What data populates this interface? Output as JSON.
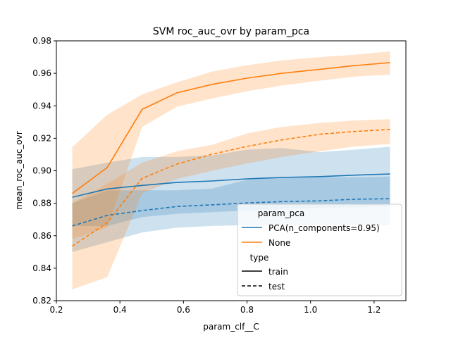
{
  "chart_data": {
    "type": "line",
    "title": "SVM roc_auc_ovr by param_pca",
    "xlabel": "param_clf__C",
    "ylabel": "mean_roc_auc_ovr",
    "xlim": [
      0.2,
      1.3
    ],
    "ylim": [
      0.82,
      0.98
    ],
    "xticks": [
      0.2,
      0.4,
      0.6,
      0.8,
      1.0,
      1.2
    ],
    "xtick_labels": [
      "0.2",
      "0.4",
      "0.6",
      "0.8",
      "1.0",
      "1.2"
    ],
    "yticks": [
      0.82,
      0.84,
      0.86,
      0.88,
      0.9,
      0.92,
      0.94,
      0.96,
      0.98
    ],
    "ytick_labels": [
      "0.82",
      "0.84",
      "0.86",
      "0.88",
      "0.90",
      "0.92",
      "0.94",
      "0.96",
      "0.98"
    ],
    "grid": false,
    "legend": {
      "placement": "lower right",
      "hue_title": "param_pca",
      "hue_entries": [
        "PCA(n_components=0.95)",
        "None"
      ],
      "style_title": "type",
      "style_entries": [
        "train",
        "test"
      ]
    },
    "colors": {
      "PCA(n_components=0.95)": "#1f77b4",
      "None": "#ff7f0e"
    },
    "x": [
      0.25,
      0.36,
      0.47,
      0.58,
      0.69,
      0.8,
      0.91,
      1.03,
      1.14,
      1.25
    ],
    "series": [
      {
        "hue": "PCA(n_components=0.95)",
        "type": "train",
        "values": [
          0.8837,
          0.8888,
          0.891,
          0.8928,
          0.8937,
          0.895,
          0.8959,
          0.8964,
          0.8973,
          0.898
        ],
        "lower": [
          0.866,
          0.866,
          0.8715,
          0.8735,
          0.8745,
          0.8755,
          0.8765,
          0.877,
          0.8775,
          0.878
        ],
        "upper": [
          0.901,
          0.905,
          0.9085,
          0.9085,
          0.9095,
          0.913,
          0.914,
          0.9115,
          0.913,
          0.9148
        ]
      },
      {
        "hue": "PCA(n_components=0.95)",
        "type": "test",
        "values": [
          0.866,
          0.8725,
          0.8755,
          0.878,
          0.879,
          0.8802,
          0.881,
          0.8815,
          0.8825,
          0.8828
        ],
        "lower": [
          0.85,
          0.856,
          0.862,
          0.865,
          0.866,
          0.8665,
          0.8665,
          0.8665,
          0.8665,
          0.8665
        ],
        "upper": [
          0.88,
          0.888,
          0.888,
          0.888,
          0.889,
          0.8945,
          0.896,
          0.896,
          0.896,
          0.8965
        ]
      },
      {
        "hue": "None",
        "type": "train",
        "values": [
          0.886,
          0.902,
          0.9378,
          0.948,
          0.9532,
          0.957,
          0.96,
          0.9625,
          0.9648,
          0.9666
        ],
        "lower": [
          0.858,
          0.865,
          0.927,
          0.9395,
          0.9445,
          0.949,
          0.9525,
          0.9555,
          0.958,
          0.9592
        ],
        "upper": [
          0.9145,
          0.9345,
          0.947,
          0.9545,
          0.961,
          0.965,
          0.968,
          0.97,
          0.9715,
          0.9735
        ]
      },
      {
        "hue": "None",
        "type": "test",
        "values": [
          0.8535,
          0.868,
          0.8953,
          0.9042,
          0.9102,
          0.915,
          0.919,
          0.9225,
          0.9242,
          0.9255
        ],
        "lower": [
          0.827,
          0.8345,
          0.886,
          0.895,
          0.9,
          0.9045,
          0.9085,
          0.912,
          0.915,
          0.9165
        ],
        "upper": [
          0.88,
          0.892,
          0.905,
          0.912,
          0.916,
          0.923,
          0.927,
          0.9295,
          0.931,
          0.9318
        ]
      }
    ]
  }
}
